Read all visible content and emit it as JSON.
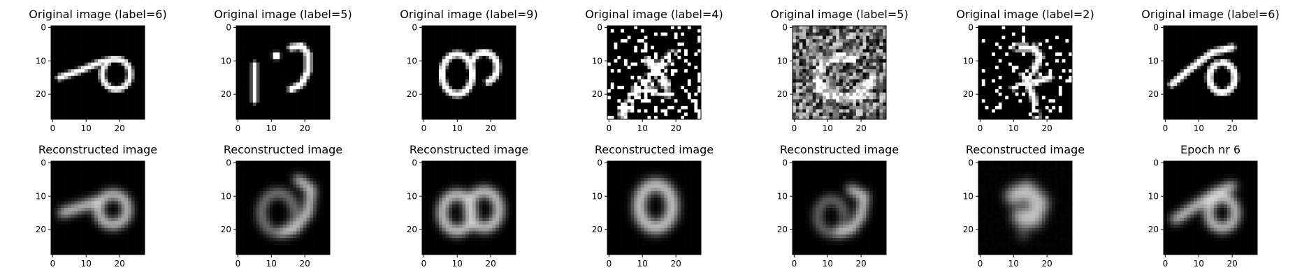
{
  "figure": {
    "type": "image-grid",
    "rows": 2,
    "cols": 7,
    "colormap": "gray",
    "image_size": [
      28,
      28
    ]
  },
  "chart_data": [
    {
      "type": "heatmap",
      "title": "Original image (label=6)",
      "image": "six-curl",
      "noise": 0,
      "blur": 0,
      "seed": 1,
      "xlim": [
        0,
        27
      ],
      "ylim": [
        0,
        27
      ],
      "xticks": [
        0,
        10,
        20
      ],
      "yticks": [
        0,
        10,
        20
      ]
    },
    {
      "type": "heatmap",
      "title": "Original image (label=5)",
      "image": "five-broken",
      "noise": 0,
      "blur": 0,
      "seed": 2,
      "xlim": [
        0,
        27
      ],
      "ylim": [
        0,
        27
      ],
      "xticks": [
        0,
        10,
        20
      ],
      "yticks": [
        0,
        10,
        20
      ]
    },
    {
      "type": "heatmap",
      "title": "Original image (label=9)",
      "image": "nine-loop",
      "noise": 0,
      "blur": 0,
      "seed": 3,
      "xlim": [
        0,
        27
      ],
      "ylim": [
        0,
        27
      ],
      "xticks": [
        0,
        10,
        20
      ],
      "yticks": [
        0,
        10,
        20
      ]
    },
    {
      "type": "heatmap",
      "title": "Original image (label=4)",
      "image": "four-noisy",
      "noise": 0.33,
      "blur": 0,
      "seed": 4,
      "binary": true,
      "xlim": [
        0,
        27
      ],
      "ylim": [
        0,
        27
      ],
      "xticks": [
        0,
        10,
        20
      ],
      "yticks": [
        0,
        10,
        20
      ]
    },
    {
      "type": "heatmap",
      "title": "Original image (label=5)",
      "image": "five-gray-noisy",
      "noise": 0.85,
      "blur": 0,
      "seed": 5,
      "grayscale_noise": true,
      "xlim": [
        0,
        27
      ],
      "ylim": [
        0,
        27
      ],
      "xticks": [
        0,
        10,
        20
      ],
      "yticks": [
        0,
        10,
        20
      ]
    },
    {
      "type": "heatmap",
      "title": "Original image (label=2)",
      "image": "two-noisy",
      "noise": 0.18,
      "blur": 0,
      "seed": 6,
      "binary": true,
      "xlim": [
        0,
        27
      ],
      "ylim": [
        0,
        27
      ],
      "xticks": [
        0,
        10,
        20
      ],
      "yticks": [
        0,
        10,
        20
      ]
    },
    {
      "type": "heatmap",
      "title": "Original image (label=6)",
      "image": "six-curl-wide",
      "noise": 0,
      "blur": 0,
      "seed": 7,
      "xlim": [
        0,
        27
      ],
      "ylim": [
        0,
        27
      ],
      "xticks": [
        0,
        10,
        20
      ],
      "yticks": [
        0,
        10,
        20
      ]
    },
    {
      "type": "heatmap",
      "title": "Reconstructed image",
      "image": "recon-six",
      "noise": 0,
      "blur": 1.2,
      "seed": 8,
      "xlim": [
        0,
        27
      ],
      "ylim": [
        0,
        27
      ],
      "xticks": [
        0,
        10,
        20
      ],
      "yticks": [
        0,
        10,
        20
      ]
    },
    {
      "type": "heatmap",
      "title": "Reconstructed image",
      "image": "recon-five",
      "noise": 0,
      "blur": 1.2,
      "seed": 9,
      "xlim": [
        0,
        27
      ],
      "ylim": [
        0,
        27
      ],
      "xticks": [
        0,
        10,
        20
      ],
      "yticks": [
        0,
        10,
        20
      ]
    },
    {
      "type": "heatmap",
      "title": "Reconstructed image",
      "image": "recon-eight",
      "noise": 0,
      "blur": 1.2,
      "seed": 10,
      "xlim": [
        0,
        27
      ],
      "ylim": [
        0,
        27
      ],
      "xticks": [
        0,
        10,
        20
      ],
      "yticks": [
        0,
        10,
        20
      ]
    },
    {
      "type": "heatmap",
      "title": "Reconstructed image",
      "image": "recon-zero",
      "noise": 0,
      "blur": 1.4,
      "seed": 11,
      "xlim": [
        0,
        27
      ],
      "ylim": [
        0,
        27
      ],
      "xticks": [
        0,
        10,
        20
      ],
      "yticks": [
        0,
        10,
        20
      ]
    },
    {
      "type": "heatmap",
      "title": "Reconstructed image",
      "image": "recon-five-b",
      "noise": 0,
      "blur": 1.2,
      "seed": 12,
      "xlim": [
        0,
        27
      ],
      "ylim": [
        0,
        27
      ],
      "xticks": [
        0,
        10,
        20
      ],
      "yticks": [
        0,
        10,
        20
      ]
    },
    {
      "type": "heatmap",
      "title": "Reconstructed image",
      "image": "recon-blob",
      "noise": 0.05,
      "blur": 1.5,
      "seed": 13,
      "xlim": [
        0,
        27
      ],
      "ylim": [
        0,
        27
      ],
      "xticks": [
        0,
        10,
        20
      ],
      "yticks": [
        0,
        10,
        20
      ]
    },
    {
      "type": "heatmap",
      "title": "Epoch nr 6",
      "image": "recon-six-b",
      "noise": 0,
      "blur": 1.2,
      "seed": 14,
      "xlim": [
        0,
        27
      ],
      "ylim": [
        0,
        27
      ],
      "xticks": [
        0,
        10,
        20
      ],
      "yticks": [
        0,
        10,
        20
      ]
    }
  ]
}
